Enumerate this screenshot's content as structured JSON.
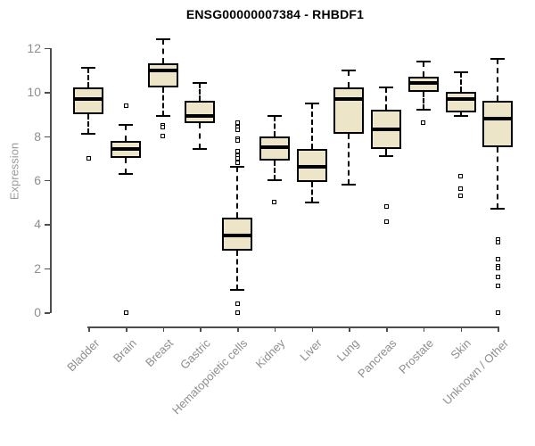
{
  "title": "ENSG00000007384 - RHBDF1",
  "ylabel": "Expression",
  "colors": {
    "box_fill": "#ece5c8",
    "box_border": "#000000",
    "axis_line": "#4d4d4d",
    "tick_label": "#8e8e8e",
    "axis_label": "#9b9b9b",
    "title": "#000000"
  },
  "chart_data": {
    "type": "boxplot",
    "title": "ENSG00000007384 - RHBDF1",
    "xlabel": "",
    "ylabel": "Expression",
    "ylim": [
      0,
      12.5
    ],
    "yticks": [
      0,
      2,
      4,
      6,
      8,
      10,
      12
    ],
    "grid": false,
    "legend": "none",
    "categories": [
      "Bladder",
      "Brain",
      "Breast",
      "Gastric",
      "Hematopoietic cells",
      "Kidney",
      "Liver",
      "Lung",
      "Pancreas",
      "Prostate",
      "Skin",
      "Unknown / Other"
    ],
    "series": [
      {
        "name": "Bladder",
        "whisker_low": 8.1,
        "q1": 9.0,
        "median": 9.7,
        "q3": 10.2,
        "whisker_high": 11.1,
        "outliers": [
          7.0
        ]
      },
      {
        "name": "Brain",
        "whisker_low": 6.3,
        "q1": 7.0,
        "median": 7.4,
        "q3": 7.8,
        "whisker_high": 8.5,
        "outliers": [
          9.4,
          0.0
        ]
      },
      {
        "name": "Breast",
        "whisker_low": 8.9,
        "q1": 10.2,
        "median": 11.0,
        "q3": 11.3,
        "whisker_high": 12.4,
        "outliers": [
          8.5,
          8.4,
          8.0
        ]
      },
      {
        "name": "Gastric",
        "whisker_low": 7.4,
        "q1": 8.6,
        "median": 8.9,
        "q3": 9.6,
        "whisker_high": 10.4,
        "outliers": []
      },
      {
        "name": "Hematopoietic cells",
        "whisker_low": 1.0,
        "q1": 2.8,
        "median": 3.5,
        "q3": 4.3,
        "whisker_high": 6.6,
        "outliers": [
          8.6,
          8.4,
          8.3,
          7.9,
          7.8,
          7.3,
          7.1,
          7.0,
          6.8,
          0.4,
          0.0
        ]
      },
      {
        "name": "Kidney",
        "whisker_low": 6.0,
        "q1": 6.9,
        "median": 7.5,
        "q3": 8.0,
        "whisker_high": 8.9,
        "outliers": [
          5.0
        ]
      },
      {
        "name": "Liver",
        "whisker_low": 5.0,
        "q1": 5.9,
        "median": 6.6,
        "q3": 7.4,
        "whisker_high": 9.5,
        "outliers": []
      },
      {
        "name": "Lung",
        "whisker_low": 5.8,
        "q1": 8.1,
        "median": 9.7,
        "q3": 10.2,
        "whisker_high": 11.0,
        "outliers": []
      },
      {
        "name": "Pancreas",
        "whisker_low": 7.1,
        "q1": 7.4,
        "median": 8.3,
        "q3": 9.2,
        "whisker_high": 10.2,
        "outliers": [
          4.8,
          4.1
        ]
      },
      {
        "name": "Prostate",
        "whisker_low": 9.2,
        "q1": 10.0,
        "median": 10.4,
        "q3": 10.7,
        "whisker_high": 11.4,
        "outliers": [
          8.6
        ]
      },
      {
        "name": "Skin",
        "whisker_low": 8.9,
        "q1": 9.1,
        "median": 9.7,
        "q3": 10.0,
        "whisker_high": 10.9,
        "outliers": [
          6.2,
          5.6,
          5.3
        ]
      },
      {
        "name": "Unknown / Other",
        "whisker_low": 4.7,
        "q1": 7.5,
        "median": 8.8,
        "q3": 9.6,
        "whisker_high": 11.5,
        "outliers": [
          3.3,
          3.2,
          2.4,
          2.1,
          2.0,
          1.6,
          1.2,
          0.0
        ]
      }
    ]
  }
}
